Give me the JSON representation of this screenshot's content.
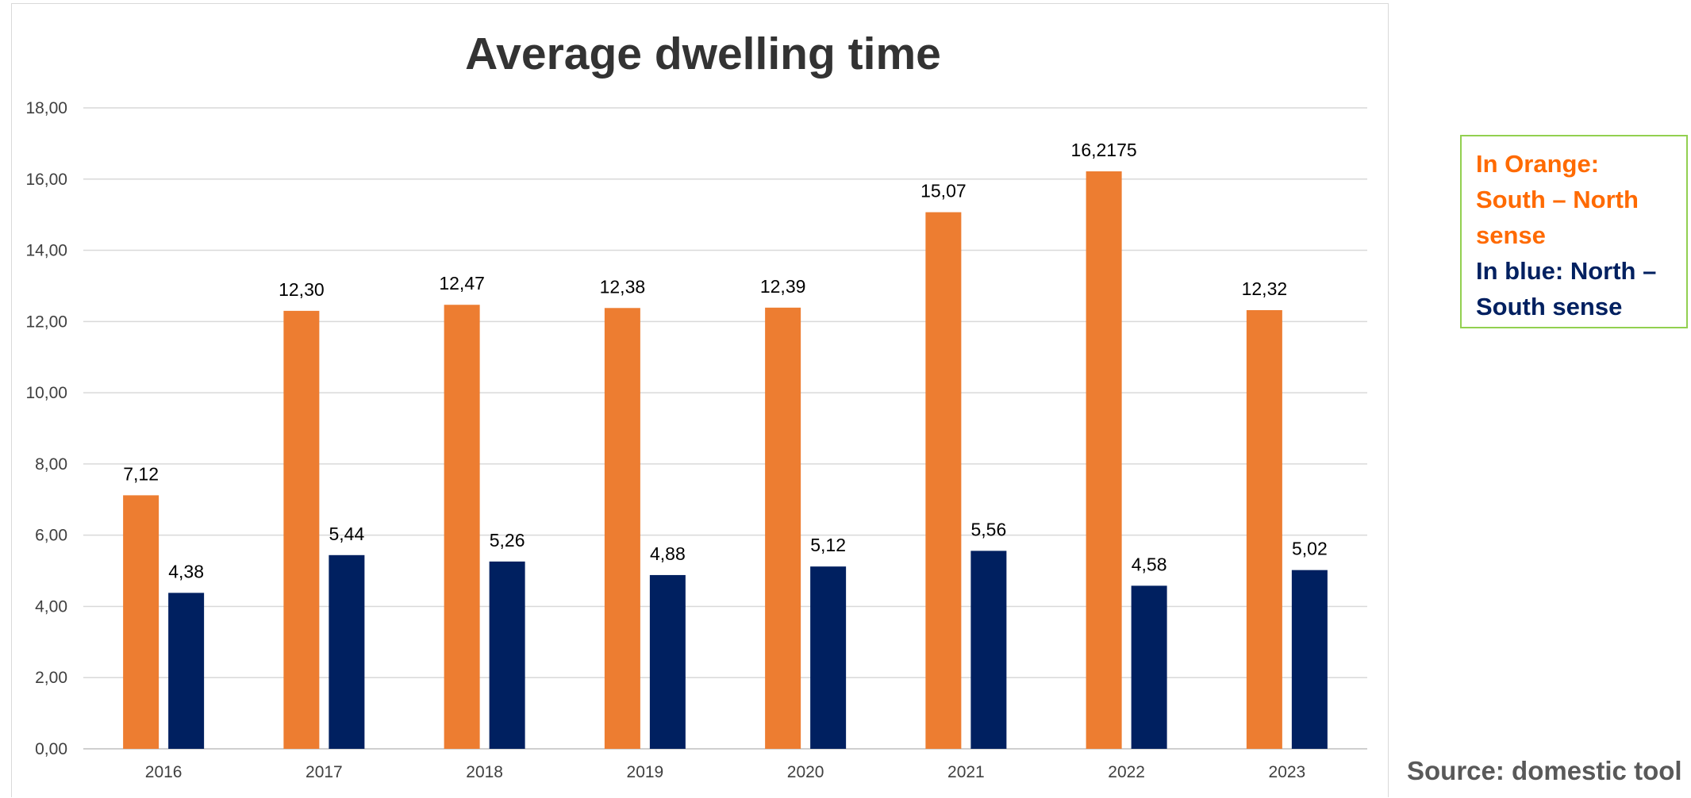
{
  "chart_data": {
    "type": "bar",
    "title": "Average dwelling time",
    "categories": [
      "2016",
      "2017",
      "2018",
      "2019",
      "2020",
      "2021",
      "2022",
      "2023"
    ],
    "series": [
      {
        "color": "#ed7d31",
        "values": [
          7.12,
          12.3,
          12.47,
          12.38,
          12.39,
          15.07,
          16.2175,
          12.32
        ],
        "labels": [
          "7,12",
          "12,30",
          "12,47",
          "12,38",
          "12,39",
          "15,07",
          "16,2175",
          "12,32"
        ]
      },
      {
        "color": "#002060",
        "values": [
          4.38,
          5.44,
          5.26,
          4.88,
          5.12,
          5.56,
          4.58,
          5.02
        ],
        "labels": [
          "4,38",
          "5,44",
          "5,26",
          "4,88",
          "5,12",
          "5,56",
          "4,58",
          "5,02"
        ]
      }
    ],
    "ylim": [
      0,
      18
    ],
    "yticks": [
      0,
      2,
      4,
      6,
      8,
      10,
      12,
      14,
      16,
      18
    ],
    "ytick_labels": [
      "0,00",
      "2,00",
      "4,00",
      "6,00",
      "8,00",
      "10,00",
      "12,00",
      "14,00",
      "16,00",
      "18,00"
    ],
    "grid": true,
    "xlabel": "",
    "ylabel": ""
  },
  "legend_note": {
    "orange_text": "In Orange: South – North sense",
    "blue_text": "In blue: North – South sense",
    "orange_color": "#ff6a00",
    "blue_color": "#002060",
    "border_color": "#92d050"
  },
  "source_note": "Source: domestic tool"
}
